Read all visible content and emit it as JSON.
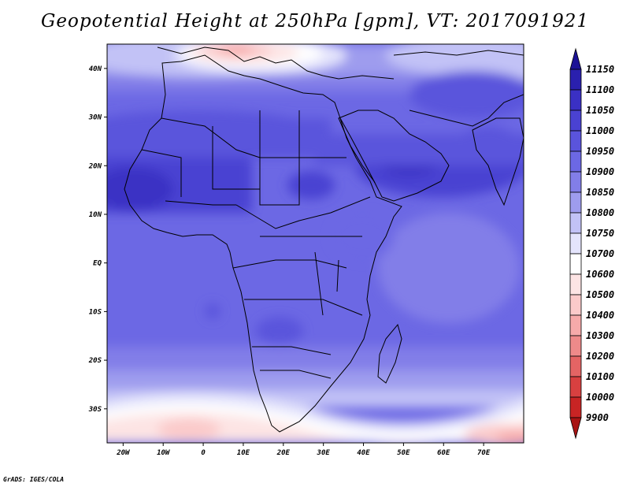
{
  "title": "Geopotential Height at 250hPa [gpm], VT: 2017091921",
  "credit": "GrADS: IGES/COLA",
  "map": {
    "lon_range": [
      -24,
      80
    ],
    "lat_range": [
      -37,
      45
    ],
    "lon_ticks": [
      {
        "value": -20,
        "label": "20W"
      },
      {
        "value": -10,
        "label": "10W"
      },
      {
        "value": 0,
        "label": "0"
      },
      {
        "value": 10,
        "label": "10E"
      },
      {
        "value": 20,
        "label": "20E"
      },
      {
        "value": 30,
        "label": "30E"
      },
      {
        "value": 40,
        "label": "40E"
      },
      {
        "value": 50,
        "label": "50E"
      },
      {
        "value": 60,
        "label": "60E"
      },
      {
        "value": 70,
        "label": "70E"
      }
    ],
    "lat_ticks": [
      {
        "value": 40,
        "label": "40N"
      },
      {
        "value": 30,
        "label": "30N"
      },
      {
        "value": 20,
        "label": "20N"
      },
      {
        "value": 10,
        "label": "10N"
      },
      {
        "value": 0,
        "label": "EQ"
      },
      {
        "value": -10,
        "label": "10S"
      },
      {
        "value": -20,
        "label": "20S"
      },
      {
        "value": -30,
        "label": "30S"
      }
    ]
  },
  "colorbar": {
    "labels": [
      "11150",
      "11100",
      "11050",
      "11000",
      "10950",
      "10900",
      "10850",
      "10800",
      "10750",
      "10700",
      "10600",
      "10500",
      "10400",
      "10300",
      "10200",
      "10100",
      "10000",
      "9900"
    ],
    "colors": [
      "#1c1296",
      "#2a20ae",
      "#3a30c4",
      "#4a42d2",
      "#5a54dc",
      "#6c68e4",
      "#827ee8",
      "#9e9cee",
      "#c2c2f6",
      "#e4e4fc",
      "#ffffff",
      "#fde4e4",
      "#fbcaca",
      "#f6aaaa",
      "#ee8a8a",
      "#e46464",
      "#d84040",
      "#c82424",
      "#a81414"
    ]
  }
}
